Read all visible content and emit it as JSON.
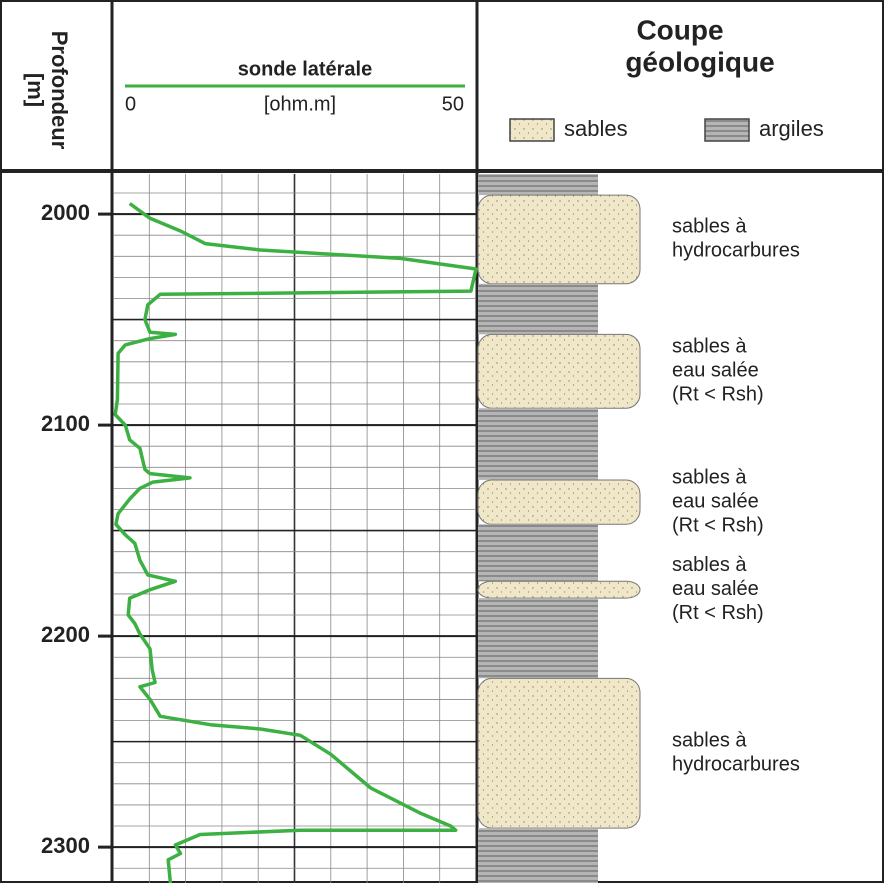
{
  "chart_data": {
    "type": "well-log",
    "depth_title": [
      "Profondeur",
      "[m]"
    ],
    "curve_name": "sonde latérale",
    "x_unit": "[ohm.m]",
    "color": "#3cb043",
    "xlim": [
      0,
      50
    ],
    "xticks": [
      0,
      50
    ],
    "ylim": [
      1981,
      2317
    ],
    "yticks": [
      2000,
      2100,
      2200,
      2300
    ],
    "grid": {
      "x_minor": 5,
      "x_major": 25,
      "y_minor": 10,
      "y_major": 50
    },
    "depth": [
      1995,
      2002,
      2008,
      2014,
      2017,
      2019,
      2021,
      2026,
      2036.5,
      2038,
      2043,
      2050,
      2056,
      2057,
      2059,
      2062,
      2066,
      2088,
      2095,
      2100,
      2107,
      2111,
      2121,
      2123,
      2125,
      2127,
      2130,
      2135,
      2142,
      2147,
      2152,
      2156,
      2164,
      2171,
      2174,
      2178,
      2182,
      2190,
      2194,
      2199,
      2206,
      2216,
      2222,
      2224,
      2230,
      2238,
      2242,
      2244,
      2247,
      2256,
      2272,
      2284,
      2290,
      2292,
      2292,
      2294,
      2299,
      2303,
      2306,
      2317
    ],
    "resistivity": [
      2.3,
      5.1,
      9.3,
      12.7,
      20.3,
      30,
      39.6,
      50,
      49.3,
      6.5,
      4.8,
      4.4,
      5.1,
      8.6,
      5.1,
      1.7,
      0.7,
      0.6,
      0.3,
      1.7,
      2.3,
      3.7,
      4.4,
      5.1,
      10.6,
      5.5,
      3.7,
      2.3,
      0.7,
      0.4,
      1.7,
      3,
      3.7,
      4.8,
      8.6,
      5.1,
      2.3,
      2.1,
      3,
      3.7,
      5.1,
      5.4,
      5.8,
      3.7,
      5.1,
      6.5,
      13.4,
      20.3,
      25.8,
      30,
      35.5,
      42.4,
      46.5,
      47.2,
      25.8,
      12,
      8.6,
      9.3,
      7.6,
      7.9
    ],
    "section_title": [
      "Coupe",
      "géologique"
    ],
    "lithologies": [
      {
        "name": "sables",
        "color": "#f0e6c8"
      },
      {
        "name": "argiles",
        "color": "#9a9a9a"
      }
    ],
    "layers": [
      {
        "top": 1981,
        "bottom": 1991,
        "lithology": "argiles"
      },
      {
        "top": 1991,
        "bottom": 2033,
        "lithology": "sables",
        "label": [
          "sables à",
          "hydrocarbures"
        ]
      },
      {
        "top": 2033,
        "bottom": 2057,
        "lithology": "argiles"
      },
      {
        "top": 2057,
        "bottom": 2092,
        "lithology": "sables",
        "label": [
          "sables à",
          "eau salée",
          "(Rt < Rsh)"
        ]
      },
      {
        "top": 2092,
        "bottom": 2126,
        "lithology": "argiles"
      },
      {
        "top": 2126,
        "bottom": 2147,
        "lithology": "sables",
        "label": [
          "sables à",
          "eau salée",
          "(Rt < Rsh)"
        ]
      },
      {
        "top": 2147,
        "bottom": 2174,
        "lithology": "argiles"
      },
      {
        "top": 2174,
        "bottom": 2182,
        "lithology": "sables",
        "label": [
          "sables à",
          "eau salée",
          "(Rt < Rsh)"
        ]
      },
      {
        "top": 2182,
        "bottom": 2220,
        "lithology": "argiles"
      },
      {
        "top": 2220,
        "bottom": 2291,
        "lithology": "sables",
        "label": [
          "sables à",
          "hydrocarbures"
        ]
      },
      {
        "top": 2291,
        "bottom": 2317,
        "lithology": "argiles"
      }
    ]
  }
}
